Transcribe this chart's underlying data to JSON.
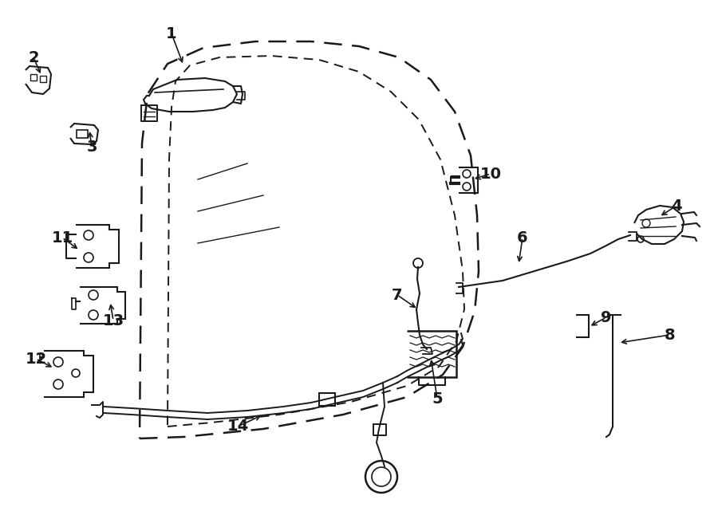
{
  "bg_color": "#ffffff",
  "line_color": "#1a1a1a",
  "fig_width": 9.0,
  "fig_height": 6.61,
  "dpi": 100,
  "door_outer": {
    "x": [
      175,
      230,
      330,
      430,
      510,
      555,
      580,
      595,
      600,
      598,
      590,
      570,
      540,
      500,
      450,
      390,
      320,
      255,
      210,
      185,
      178,
      175
    ],
    "y": [
      550,
      548,
      538,
      520,
      498,
      470,
      435,
      390,
      340,
      270,
      195,
      140,
      100,
      72,
      58,
      52,
      52,
      60,
      80,
      118,
      180,
      550
    ]
  },
  "door_inner": {
    "x": [
      210,
      265,
      350,
      440,
      510,
      550,
      572,
      582,
      580,
      570,
      552,
      525,
      490,
      450,
      400,
      340,
      275,
      238,
      220,
      215,
      212,
      210
    ],
    "y": [
      535,
      530,
      520,
      504,
      484,
      460,
      428,
      388,
      340,
      270,
      200,
      150,
      115,
      90,
      75,
      70,
      72,
      82,
      102,
      135,
      200,
      535
    ]
  }
}
